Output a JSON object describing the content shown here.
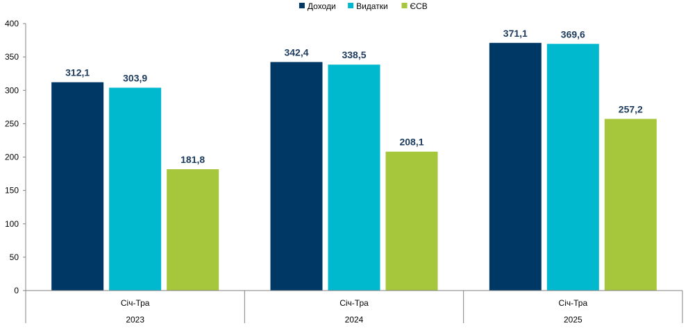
{
  "chart_data": {
    "type": "bar",
    "categories": [
      {
        "period": "Січ-Тра",
        "year": "2023"
      },
      {
        "period": "Січ-Тра",
        "year": "2024"
      },
      {
        "period": "Січ-Тра",
        "year": "2025"
      }
    ],
    "series": [
      {
        "name": "Доходи",
        "color": "#003865",
        "values": [
          312.1,
          342.4,
          371.1
        ],
        "labels": [
          "312,1",
          "342,4",
          "371,1"
        ]
      },
      {
        "name": "Видатки",
        "color": "#00b9cf",
        "values": [
          303.9,
          338.5,
          369.6
        ],
        "labels": [
          "303,9",
          "338,5",
          "369,6"
        ]
      },
      {
        "name": "ЄСВ",
        "color": "#a6c63c",
        "values": [
          181.8,
          208.1,
          257.2
        ],
        "labels": [
          "181,8",
          "208,1",
          "257,2"
        ]
      }
    ],
    "ylim": [
      0,
      400
    ],
    "yticks": [
      0,
      50,
      100,
      150,
      200,
      250,
      300,
      350,
      400
    ],
    "grid": false,
    "legend": "top-center",
    "title": "",
    "xlabel": "",
    "ylabel": ""
  }
}
